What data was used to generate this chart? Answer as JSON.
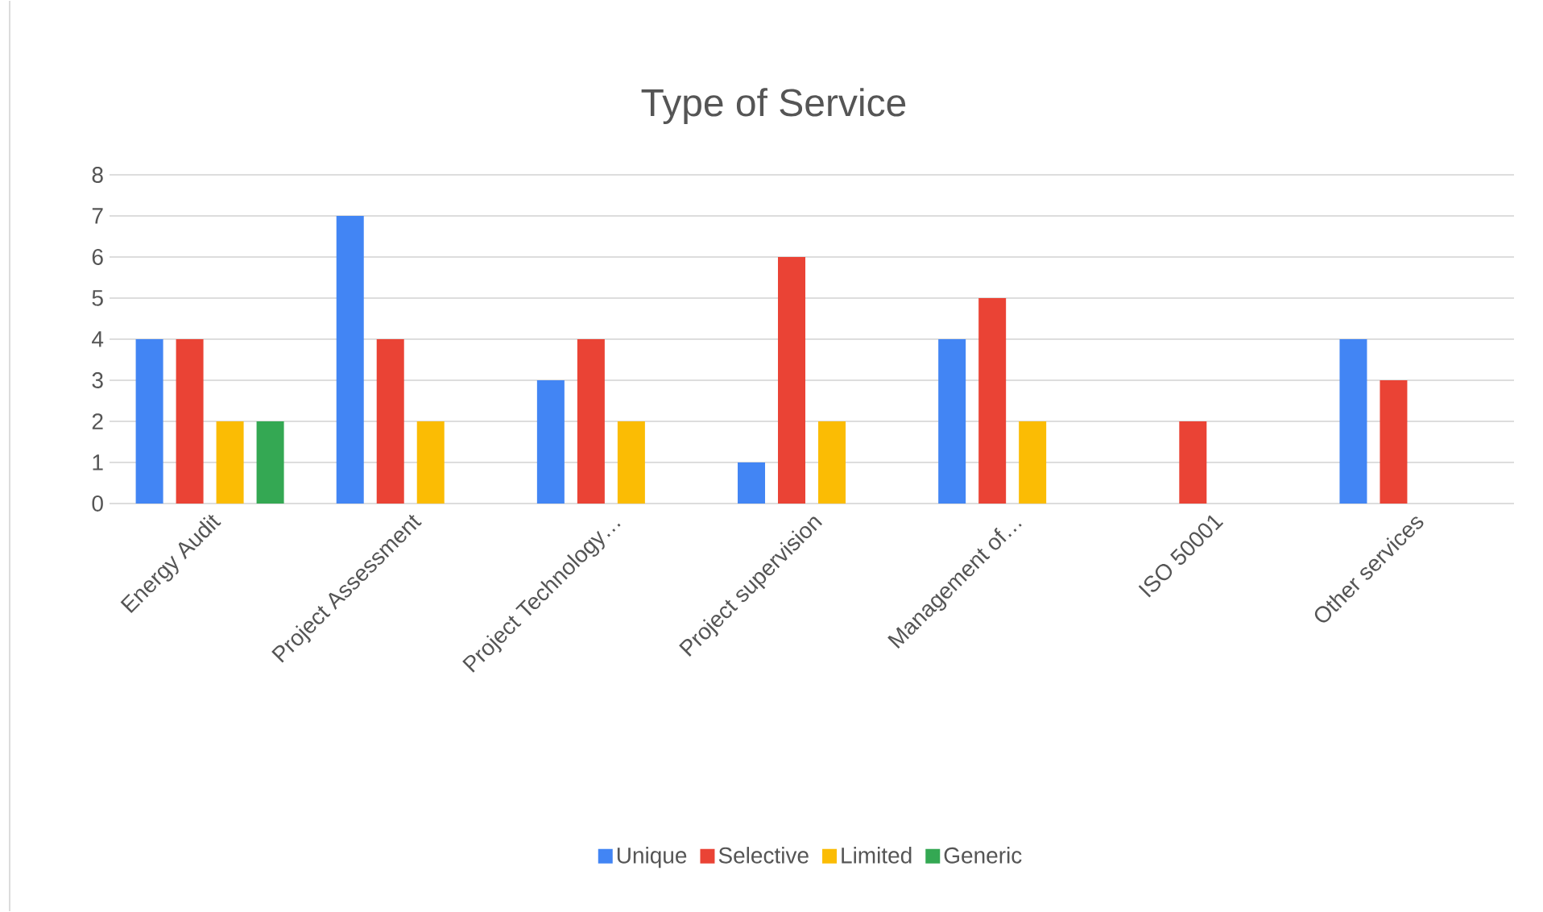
{
  "chart_data": {
    "type": "bar",
    "title": "Type of Service",
    "categories": [
      "Energy Audit",
      "Project Assessment",
      "Project Technology…",
      "Project supervision",
      "Management of…",
      "ISO 50001",
      "Other services"
    ],
    "series": [
      {
        "name": "Unique",
        "color": "#4285f4",
        "values": [
          4,
          7,
          3,
          1,
          4,
          null,
          4
        ]
      },
      {
        "name": "Selective",
        "color": "#ea4335",
        "values": [
          4,
          4,
          4,
          6,
          5,
          2,
          3
        ]
      },
      {
        "name": "Limited",
        "color": "#fbbc04",
        "values": [
          2,
          2,
          2,
          2,
          2,
          null,
          null
        ]
      },
      {
        "name": "Generic",
        "color": "#34a853",
        "values": [
          2,
          null,
          null,
          null,
          null,
          null,
          null
        ]
      }
    ],
    "ylim": [
      0,
      8
    ],
    "yticks": [
      0,
      1,
      2,
      3,
      4,
      5,
      6,
      7,
      8
    ],
    "grid": "y",
    "legend": "bottom"
  }
}
